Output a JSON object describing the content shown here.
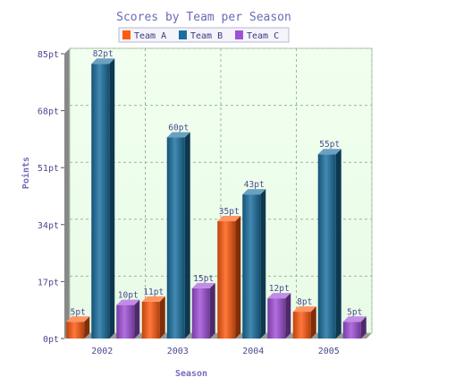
{
  "chart_data": {
    "type": "bar",
    "title": "Scores by Team per Season",
    "xlabel": "Season",
    "ylabel": "Points",
    "categories": [
      "2002",
      "2003",
      "2004",
      "2005"
    ],
    "series": [
      {
        "name": "Team A",
        "color": "#ff5a10",
        "values": [
          5,
          11,
          35,
          8
        ]
      },
      {
        "name": "Team B",
        "color": "#1a6fa0",
        "values": [
          82,
          60,
          43,
          55
        ]
      },
      {
        "name": "Team C",
        "color": "#a050d8",
        "values": [
          10,
          15,
          12,
          5
        ]
      }
    ],
    "ylim": [
      0,
      85
    ],
    "yticks": [
      "0pt",
      "17pt",
      "34pt",
      "51pt",
      "68pt",
      "85pt"
    ],
    "value_labels": [
      [
        "5pt",
        "11pt",
        "35pt",
        "8pt"
      ],
      [
        "82pt",
        "60pt",
        "43pt",
        "55pt"
      ],
      [
        "10pt",
        "15pt",
        "12pt",
        "5pt"
      ]
    ],
    "grid": true,
    "legend": "top"
  }
}
